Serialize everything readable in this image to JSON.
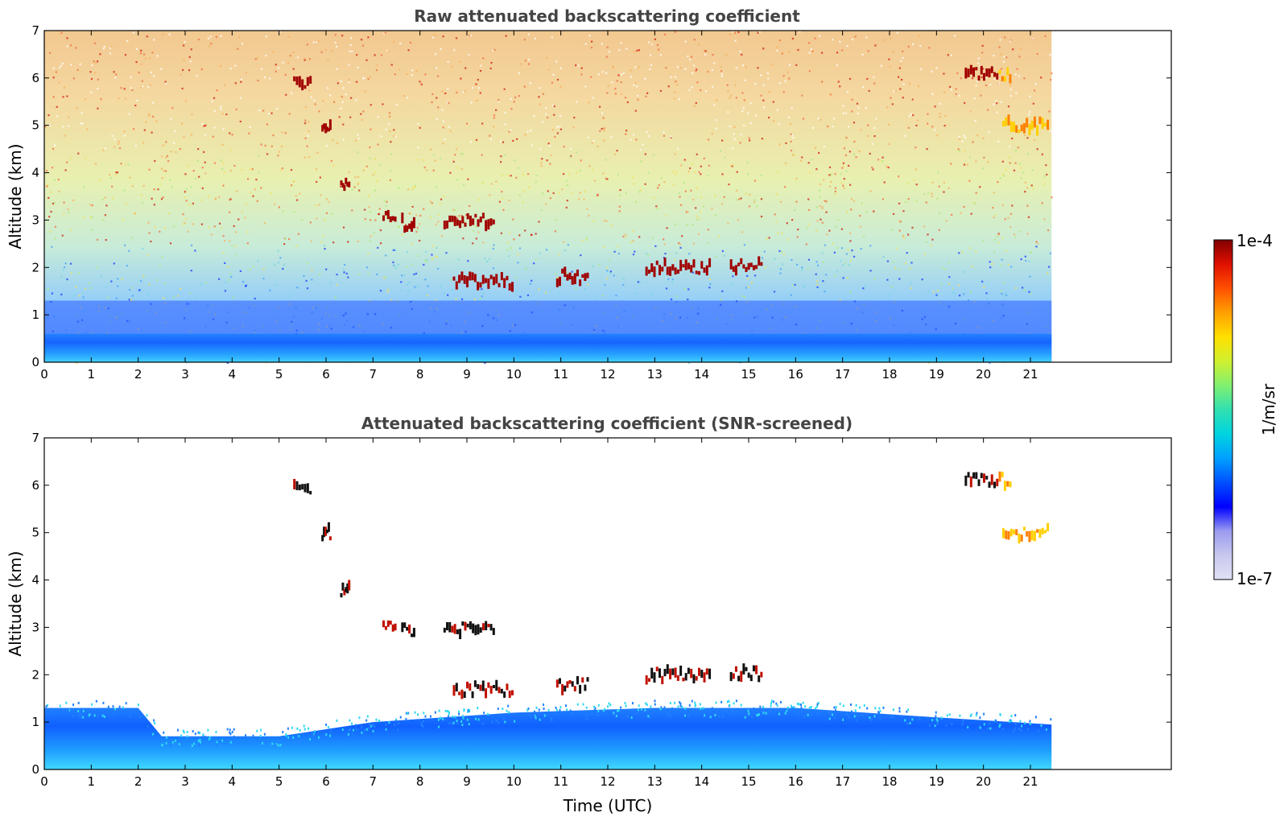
{
  "chart_data": [
    {
      "type": "heatmap",
      "title": "Raw attenuated backscattering coefficient",
      "xlabel": "",
      "ylabel": "Altitude (km)",
      "xlim": [
        0,
        24
      ],
      "ylim": [
        0,
        7
      ],
      "xticks": [
        "0",
        "1",
        "2",
        "3",
        "4",
        "5",
        "6",
        "7",
        "8",
        "9",
        "10",
        "11",
        "12",
        "13",
        "14",
        "15",
        "16",
        "17",
        "18",
        "19",
        "20",
        "21"
      ],
      "yticks": [
        "0",
        "1",
        "2",
        "3",
        "4",
        "5",
        "6",
        "7"
      ],
      "data_extent_hours": 21.45,
      "cloud_layers": [
        {
          "start": 7.2,
          "end": 7.5,
          "alt": 3.1
        },
        {
          "start": 7.6,
          "end": 7.9,
          "alt": 2.93
        },
        {
          "start": 8.5,
          "end": 9.6,
          "alt": 2.97
        },
        {
          "start": 8.7,
          "end": 10.0,
          "alt": 1.7
        },
        {
          "start": 10.9,
          "end": 11.6,
          "alt": 1.8
        },
        {
          "start": 12.8,
          "end": 14.2,
          "alt": 2.0
        },
        {
          "start": 14.6,
          "end": 15.3,
          "alt": 2.02
        },
        {
          "start": 19.6,
          "end": 20.6,
          "alt": 6.1
        },
        {
          "start": 20.4,
          "end": 21.4,
          "alt": 5.0
        },
        {
          "start": 5.9,
          "end": 6.1,
          "alt": 5.0
        },
        {
          "start": 6.3,
          "end": 6.5,
          "alt": 3.8
        },
        {
          "start": 5.3,
          "end": 5.7,
          "alt": 5.9
        }
      ]
    },
    {
      "type": "heatmap",
      "title": "Attenuated backscattering coefficient (SNR-screened)",
      "xlabel": "Time (UTC)",
      "ylabel": "Altitude (km)",
      "xlim": [
        0,
        24
      ],
      "ylim": [
        0,
        7
      ],
      "xticks": [
        "0",
        "1",
        "2",
        "3",
        "4",
        "5",
        "6",
        "7",
        "8",
        "9",
        "10",
        "11",
        "12",
        "13",
        "14",
        "15",
        "16",
        "17",
        "18",
        "19",
        "20",
        "21"
      ],
      "yticks": [
        "0",
        "1",
        "2",
        "3",
        "4",
        "5",
        "6",
        "7"
      ],
      "data_extent_hours": 21.45,
      "boundary_layer_top_km": [
        {
          "t": 0,
          "h": 1.3
        },
        {
          "t": 2,
          "h": 1.3
        },
        {
          "t": 2.5,
          "h": 0.7
        },
        {
          "t": 5,
          "h": 0.7
        },
        {
          "t": 7,
          "h": 1.0
        },
        {
          "t": 10,
          "h": 1.2
        },
        {
          "t": 13,
          "h": 1.3
        },
        {
          "t": 16,
          "h": 1.3
        },
        {
          "t": 19,
          "h": 1.1
        },
        {
          "t": 21.45,
          "h": 0.95
        }
      ]
    }
  ],
  "colorbar": {
    "label": "1/m/sr",
    "max_label": "1e-4",
    "min_label": "1e-7",
    "scale": "log",
    "colormap": "jet",
    "colors": [
      "#e0e0f5",
      "#c8c8ee",
      "#9a9af0",
      "#0000ff",
      "#0050ff",
      "#00a0ff",
      "#00d4e0",
      "#30e0b0",
      "#80f070",
      "#d0f030",
      "#ffe000",
      "#ffa000",
      "#ff5000",
      "#e01000",
      "#800000"
    ]
  }
}
